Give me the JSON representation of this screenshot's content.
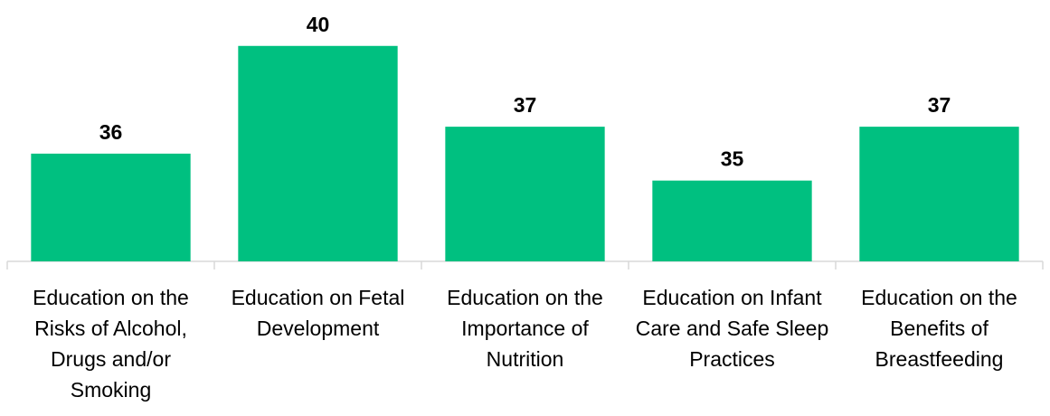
{
  "chart_data": {
    "type": "bar",
    "categories": [
      "Education on the Risks of Alcohol, Drugs and/or Smoking",
      "Education on Fetal Development",
      "Education on the Importance of Nutrition",
      "Education on Infant Care and Safe Sleep Practices",
      "Education on the Benefits of Breastfeeding"
    ],
    "values": [
      36,
      40,
      37,
      35,
      37
    ],
    "color": "#00c080",
    "ylim": [
      32,
      41
    ]
  }
}
